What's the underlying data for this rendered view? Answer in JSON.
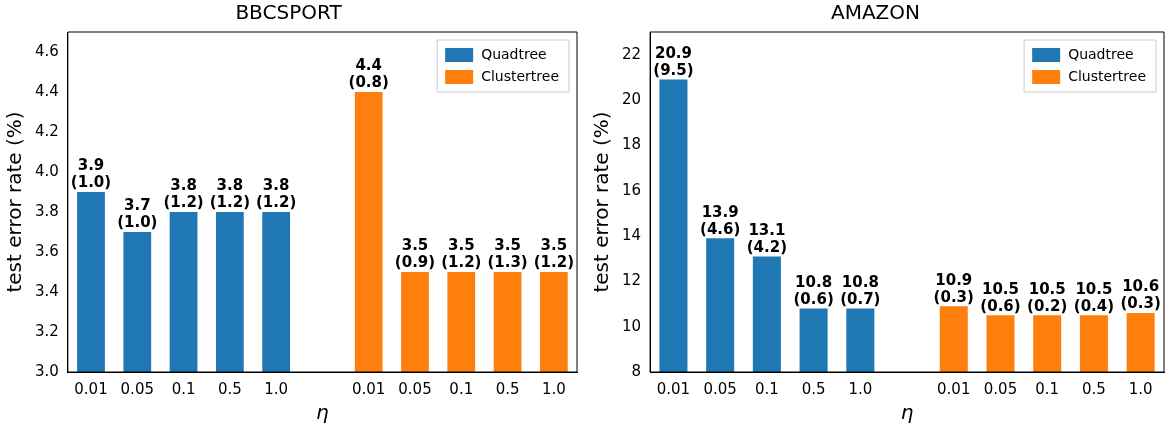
{
  "chart_data": [
    {
      "type": "bar",
      "title": "BBCSPORT",
      "xlabel": "η",
      "ylabel": "test error rate (%)",
      "categories": [
        "0.01",
        "0.05",
        "0.1",
        "0.5",
        "1.0",
        null,
        "0.01",
        "0.05",
        "0.1",
        "0.5",
        "1.0"
      ],
      "series": [
        {
          "name": "Quadtree",
          "color": "#1f77b4",
          "values": [
            3.9,
            3.7,
            3.8,
            3.8,
            3.8,
            null,
            null,
            null,
            null,
            null,
            null
          ],
          "value_labels": [
            "3.9\n(1.0)",
            "3.7\n(1.0)",
            "3.8\n(1.2)",
            "3.8\n(1.2)",
            "3.8\n(1.2)",
            null,
            null,
            null,
            null,
            null,
            null
          ]
        },
        {
          "name": "Clustertree",
          "color": "#ff7f0e",
          "values": [
            null,
            null,
            null,
            null,
            null,
            null,
            4.4,
            3.5,
            3.5,
            3.5,
            3.5
          ],
          "value_labels": [
            null,
            null,
            null,
            null,
            null,
            null,
            "4.4\n(0.8)",
            "3.5\n(0.9)",
            "3.5\n(1.2)",
            "3.5\n(1.3)",
            "3.5\n(1.2)"
          ]
        }
      ],
      "ylim": [
        3.0,
        4.7
      ],
      "yticks": [
        {
          "value": 3.0,
          "label": "3.0"
        },
        3.2,
        3.4,
        3.6,
        3.8,
        {
          "value": 4.0,
          "label": "4.0"
        },
        4.2,
        4.4,
        4.6
      ],
      "legend": "top right",
      "grid": false
    },
    {
      "type": "bar",
      "title": "AMAZON",
      "xlabel": "η",
      "ylabel": "test error rate (%)",
      "categories": [
        "0.01",
        "0.05",
        "0.1",
        "0.5",
        "1.0",
        null,
        "0.01",
        "0.05",
        "0.1",
        "0.5",
        "1.0"
      ],
      "series": [
        {
          "name": "Quadtree",
          "color": "#1f77b4",
          "values": [
            20.9,
            13.9,
            13.1,
            10.8,
            10.8,
            null,
            null,
            null,
            null,
            null,
            null
          ],
          "value_labels": [
            "20.9\n(9.5)",
            "13.9\n(4.6)",
            "13.1\n(4.2)",
            "10.8\n(0.6)",
            "10.8\n(0.7)",
            null,
            null,
            null,
            null,
            null,
            null
          ]
        },
        {
          "name": "Clustertree",
          "color": "#ff7f0e",
          "values": [
            null,
            null,
            null,
            null,
            null,
            null,
            10.9,
            10.5,
            10.5,
            10.5,
            10.6
          ],
          "value_labels": [
            null,
            null,
            null,
            null,
            null,
            null,
            "10.9\n(0.3)",
            "10.5\n(0.6)",
            "10.5\n(0.2)",
            "10.5\n(0.4)",
            "10.6\n(0.3)"
          ]
        }
      ],
      "ylim": [
        8,
        23
      ],
      "yticks": [
        8,
        10,
        12,
        14,
        16,
        18,
        20,
        22
      ],
      "legend": "top right",
      "grid": false
    }
  ]
}
